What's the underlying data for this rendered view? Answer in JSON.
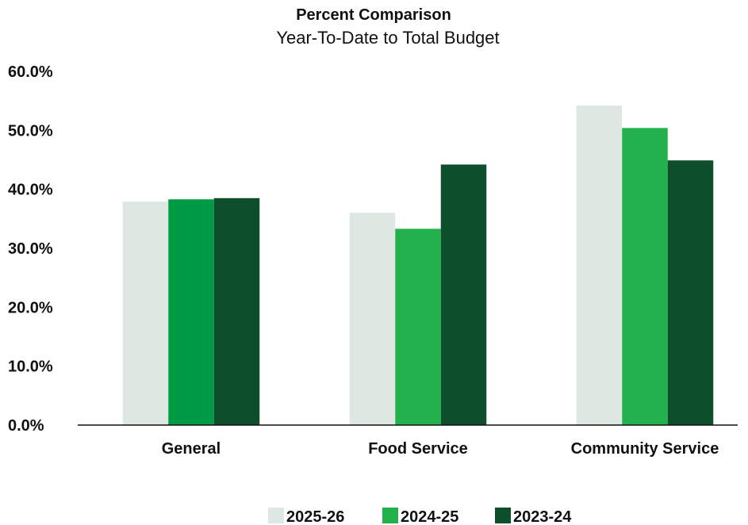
{
  "chart_data": {
    "type": "bar",
    "title": "Percent Comparison",
    "subtitle": "Year-To-Date to Total Budget",
    "xlabel": "",
    "ylabel": "",
    "categories": [
      "General",
      "Food Service",
      "Community Service"
    ],
    "series": [
      {
        "name": "2025-26",
        "color": "#dde8e3",
        "values": [
          37.9,
          36.0,
          54.2
        ]
      },
      {
        "name": "2024-25",
        "color": "#22b14c",
        "values": [
          38.3,
          33.3,
          50.4
        ]
      },
      {
        "name": "2023-24",
        "color": "#0d4f2c",
        "values": [
          38.5,
          44.2,
          44.9
        ]
      }
    ],
    "ylim": [
      0,
      60
    ],
    "yticks": [
      "0.0%",
      "10.0%",
      "20.0%",
      "30.0%",
      "40.0%",
      "50.0%",
      "60.0%"
    ],
    "grid": false,
    "legend_position": "bottom-center",
    "series_colors_note_first_category": [
      "#dde8e3",
      "#009a44",
      "#0d4f2c"
    ]
  }
}
